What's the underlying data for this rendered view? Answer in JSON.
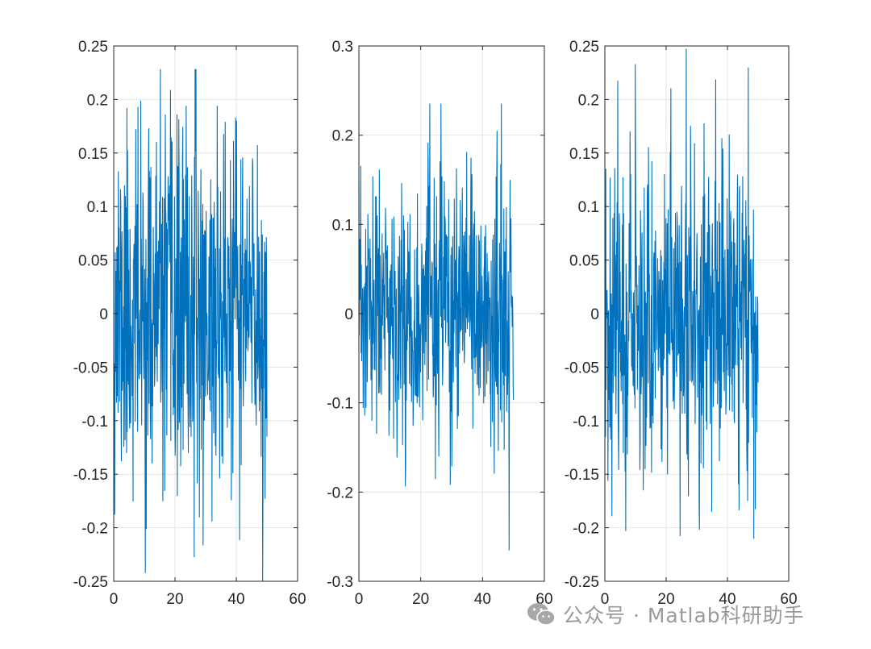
{
  "chart_data": [
    {
      "type": "line",
      "title": "",
      "xlabel": "",
      "ylabel": "",
      "xlim": [
        0,
        60
      ],
      "ylim": [
        -0.25,
        0.25
      ],
      "xticks": [
        0,
        20,
        40,
        60
      ],
      "xtick_labels": [
        "0",
        "20",
        "40",
        "60"
      ],
      "yticks": [
        -0.25,
        -0.2,
        -0.15,
        -0.1,
        -0.05,
        0,
        0.05,
        0.1,
        0.15,
        0.2,
        0.25
      ],
      "ytick_labels": [
        "-0.25",
        "-0.2",
        "-0.15",
        "-0.1",
        "-0.05",
        "0",
        "0.05",
        "0.1",
        "0.15",
        "0.2",
        "0.25"
      ],
      "grid": true,
      "color": "#0072BD",
      "x_range": [
        0,
        50
      ],
      "n_points": 500,
      "noise": {
        "mean": 0.0,
        "std": 0.085,
        "min": -0.25,
        "max": 0.228
      },
      "seed": 11
    },
    {
      "type": "line",
      "title": "",
      "xlabel": "",
      "ylabel": "",
      "xlim": [
        0,
        60
      ],
      "ylim": [
        -0.3,
        0.3
      ],
      "xticks": [
        0,
        20,
        40,
        60
      ],
      "xtick_labels": [
        "0",
        "20",
        "40",
        "60"
      ],
      "yticks": [
        -0.3,
        -0.2,
        -0.1,
        0,
        0.1,
        0.2,
        0.3
      ],
      "ytick_labels": [
        "-0.3",
        "-0.2",
        "-0.1",
        "0",
        "0.1",
        "0.2",
        "0.3"
      ],
      "grid": true,
      "color": "#0072BD",
      "x_range": [
        0,
        50
      ],
      "n_points": 500,
      "noise": {
        "mean": 0.0,
        "std": 0.075,
        "min": -0.265,
        "max": 0.235
      },
      "seed": 23
    },
    {
      "type": "line",
      "title": "",
      "xlabel": "",
      "ylabel": "",
      "xlim": [
        0,
        60
      ],
      "ylim": [
        -0.25,
        0.25
      ],
      "xticks": [
        0,
        20,
        40,
        60
      ],
      "xtick_labels": [
        "0",
        "20",
        "40",
        "60"
      ],
      "yticks": [
        -0.25,
        -0.2,
        -0.15,
        -0.1,
        -0.05,
        0,
        0.05,
        0.1,
        0.15,
        0.2,
        0.25
      ],
      "ytick_labels": [
        "-0.25",
        "-0.2",
        "-0.15",
        "-0.1",
        "-0.05",
        "0",
        "0.05",
        "0.1",
        "0.15",
        "0.2",
        "0.25"
      ],
      "grid": true,
      "color": "#0072BD",
      "x_range": [
        0,
        50
      ],
      "n_points": 500,
      "noise": {
        "mean": 0.0,
        "std": 0.075,
        "min": -0.21,
        "max": 0.247
      },
      "seed": 37
    }
  ],
  "watermark": {
    "text": "公众号 · Matlab科研助手",
    "icon": "wechat-icon"
  }
}
